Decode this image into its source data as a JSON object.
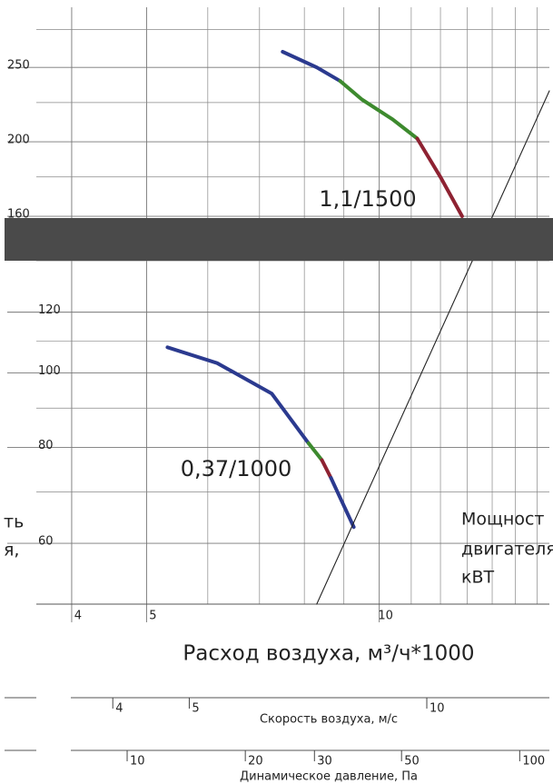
{
  "chart_data": {
    "type": "line",
    "xlabel": "Расход воздуха, м³/ч*1000",
    "xscale": "log",
    "yscale": "log",
    "xlim": [
      3.6,
      16.6
    ],
    "ylim": [
      50,
      306
    ],
    "xticks": [
      4,
      5,
      10
    ],
    "x_minor_ticks": [
      6,
      7,
      8,
      9,
      11,
      12,
      13,
      14,
      15,
      16
    ],
    "yticks": [
      60,
      80,
      100,
      120,
      160,
      200,
      250
    ],
    "y_minor_ticks": [
      70,
      90,
      110,
      140,
      180,
      225,
      280
    ],
    "grid": true,
    "series": [
      {
        "color": "#2b3a8f",
        "x": [
          7.5,
          8.3,
          8.9
        ],
        "y": [
          262,
          250,
          240
        ]
      },
      {
        "color": "#3d8a2e",
        "x": [
          8.9,
          9.5,
          10.4,
          11.2
        ],
        "y": [
          240,
          227,
          214,
          202
        ]
      },
      {
        "color": "#8e2232",
        "x": [
          11.2,
          12.0,
          12.8
        ],
        "y": [
          202,
          180,
          160
        ]
      },
      {
        "color": "#2b3a8f",
        "x": [
          5.32,
          6.17,
          7.26,
          8.1
        ],
        "y": [
          108,
          103,
          94,
          81
        ]
      },
      {
        "color": "#3d8a2e",
        "x": [
          8.1,
          8.43
        ],
        "y": [
          81,
          77
        ]
      },
      {
        "color": "#8e2232",
        "x": [
          8.43,
          8.66
        ],
        "y": [
          77,
          73
        ]
      },
      {
        "color": "#2b3a8f",
        "x": [
          8.66,
          9.27
        ],
        "y": [
          73,
          63
        ]
      },
      {
        "color": "#222222",
        "x": [
          8.3,
          16.6
        ],
        "y": [
          50,
          233
        ]
      }
    ],
    "annotations": [
      "1,1/1500",
      "0,37/1000",
      "Мощност",
      "двигателя",
      "кВТ",
      "ть",
      "я,"
    ],
    "velocity_axis": {
      "label": "Скорость воздуха, м/с",
      "xlim": [
        3.2,
        14.3
      ],
      "ticks": [
        4,
        5,
        10
      ]
    },
    "pressure_axis": {
      "label": "Динамическое давление, Па",
      "xlim": [
        5.87,
        119
      ],
      "ticks": [
        10,
        20,
        30,
        50,
        100
      ]
    }
  }
}
